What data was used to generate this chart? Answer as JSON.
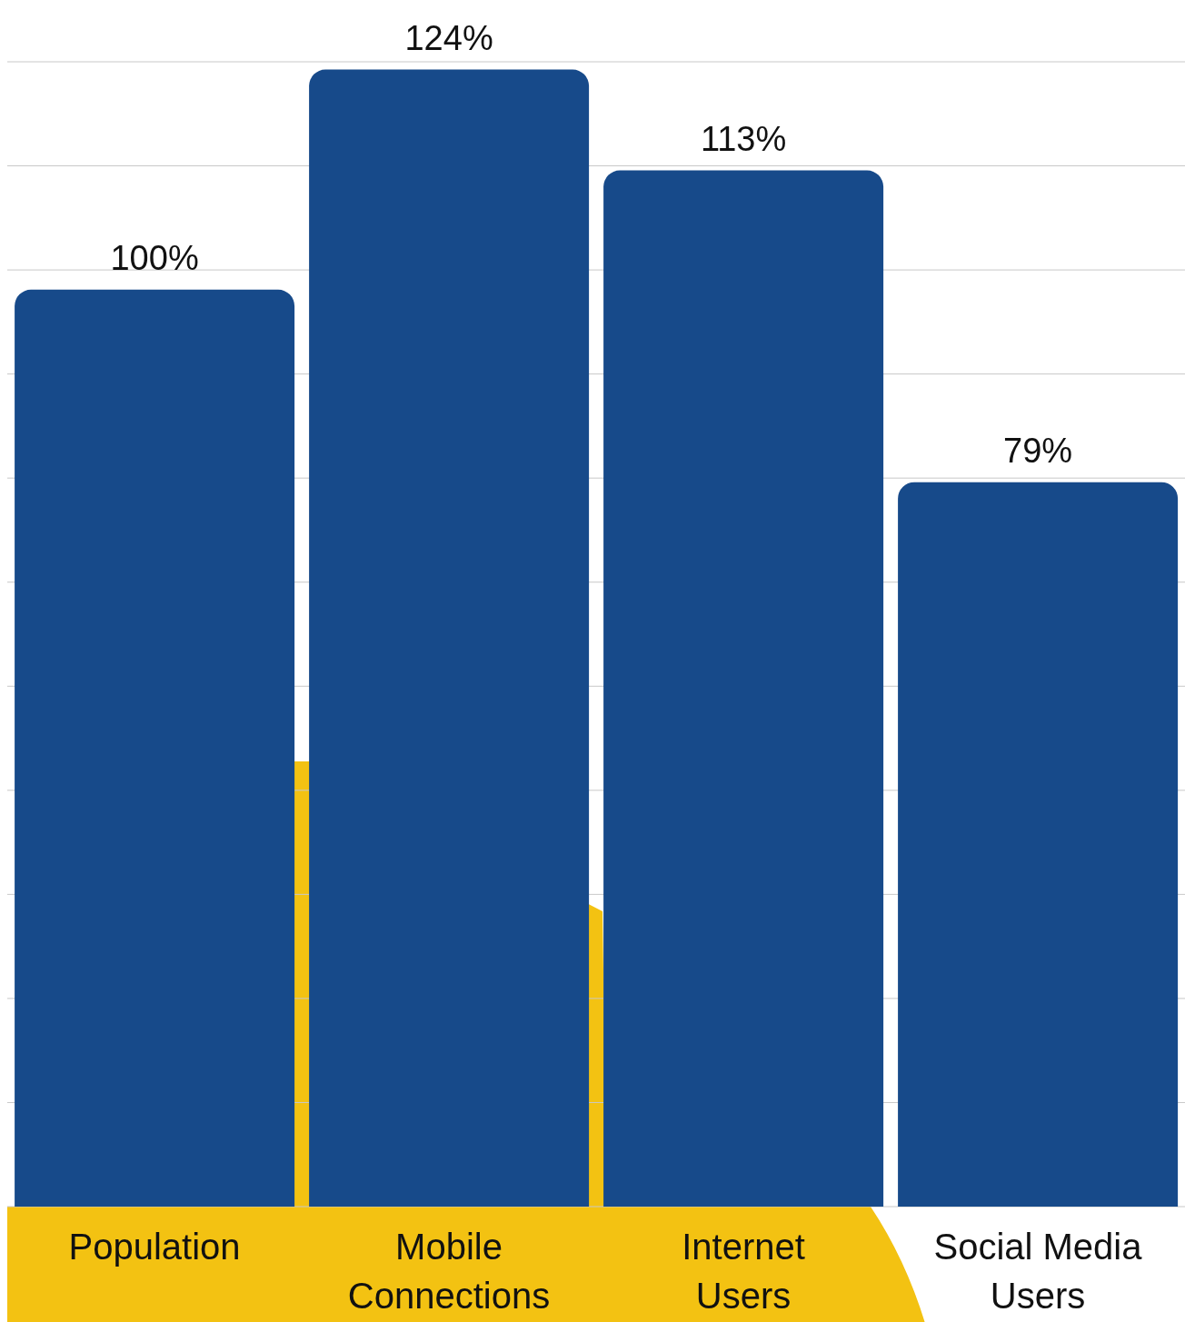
{
  "chart_data": {
    "type": "bar",
    "categories": [
      "Population",
      "Mobile Connections",
      "Internet Users",
      "Social Media Users"
    ],
    "values": [
      100,
      124,
      113,
      79
    ],
    "color": "#174a8a",
    "value_labels": [
      "100%",
      "124%",
      "113%",
      "79%"
    ],
    "yticks": [
      {
        "value": 0,
        "label": null
      },
      {
        "value": 11.35,
        "label": null
      },
      {
        "value": 22.7,
        "label": null
      },
      {
        "value": 34.05,
        "label": null
      },
      {
        "value": 45.4,
        "label": null
      },
      {
        "value": 56.75,
        "label": null
      },
      {
        "value": 68.1,
        "label": null
      },
      {
        "value": 79.45,
        "label": null
      },
      {
        "value": 90.8,
        "label": null
      },
      {
        "value": 102.15,
        "label": null
      },
      {
        "value": 113.5,
        "label": null
      },
      {
        "value": 124.85,
        "label": null
      }
    ],
    "grid": "y",
    "tick_labels": "x"
  }
}
